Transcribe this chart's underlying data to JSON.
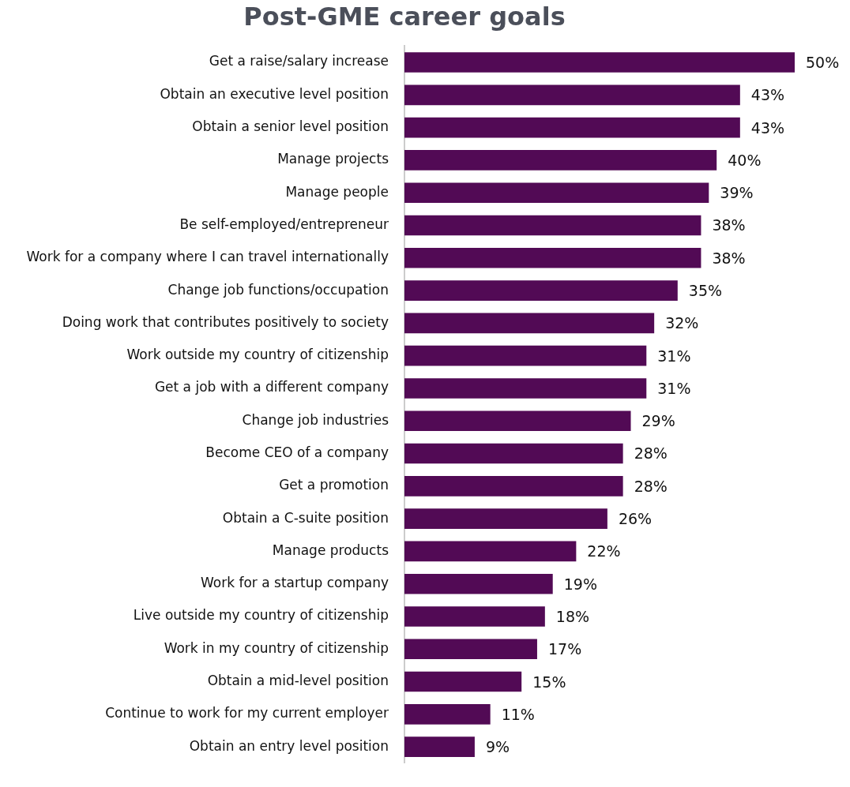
{
  "chart_data": {
    "type": "bar",
    "orientation": "horizontal",
    "title": "Post-GME career goals",
    "categories": [
      "Get a raise/salary increase",
      "Obtain an executive level position",
      "Obtain a senior level position",
      "Manage projects",
      "Manage people",
      "Be self-employed/entrepreneur",
      "Work for a company where I can travel internationally",
      "Change job functions/occupation",
      "Doing work that contributes positively to society",
      "Work outside my country of citizenship",
      "Get a job with a different company",
      "Change job industries",
      "Become CEO of a company",
      "Get a promotion",
      "Obtain a C-suite position",
      "Manage products",
      "Work for a startup company",
      "Live outside my country of citizenship",
      "Work in my country of citizenship",
      "Obtain a mid-level position",
      "Continue to work for my current employer",
      "Obtain an entry level position"
    ],
    "values": [
      50,
      43,
      43,
      40,
      39,
      38,
      38,
      35,
      32,
      31,
      31,
      29,
      28,
      28,
      26,
      22,
      19,
      18,
      17,
      15,
      11,
      9
    ],
    "value_labels": [
      "50%",
      "43%",
      "43%",
      "40%",
      "39%",
      "38%",
      "38%",
      "35%",
      "32%",
      "31%",
      "31%",
      "29%",
      "28%",
      "28%",
      "26%",
      "22%",
      "19%",
      "18%",
      "17%",
      "15%",
      "11%",
      "9%"
    ],
    "color": "#520a55",
    "tick_labels": "y",
    "grid": false,
    "legend": false
  }
}
